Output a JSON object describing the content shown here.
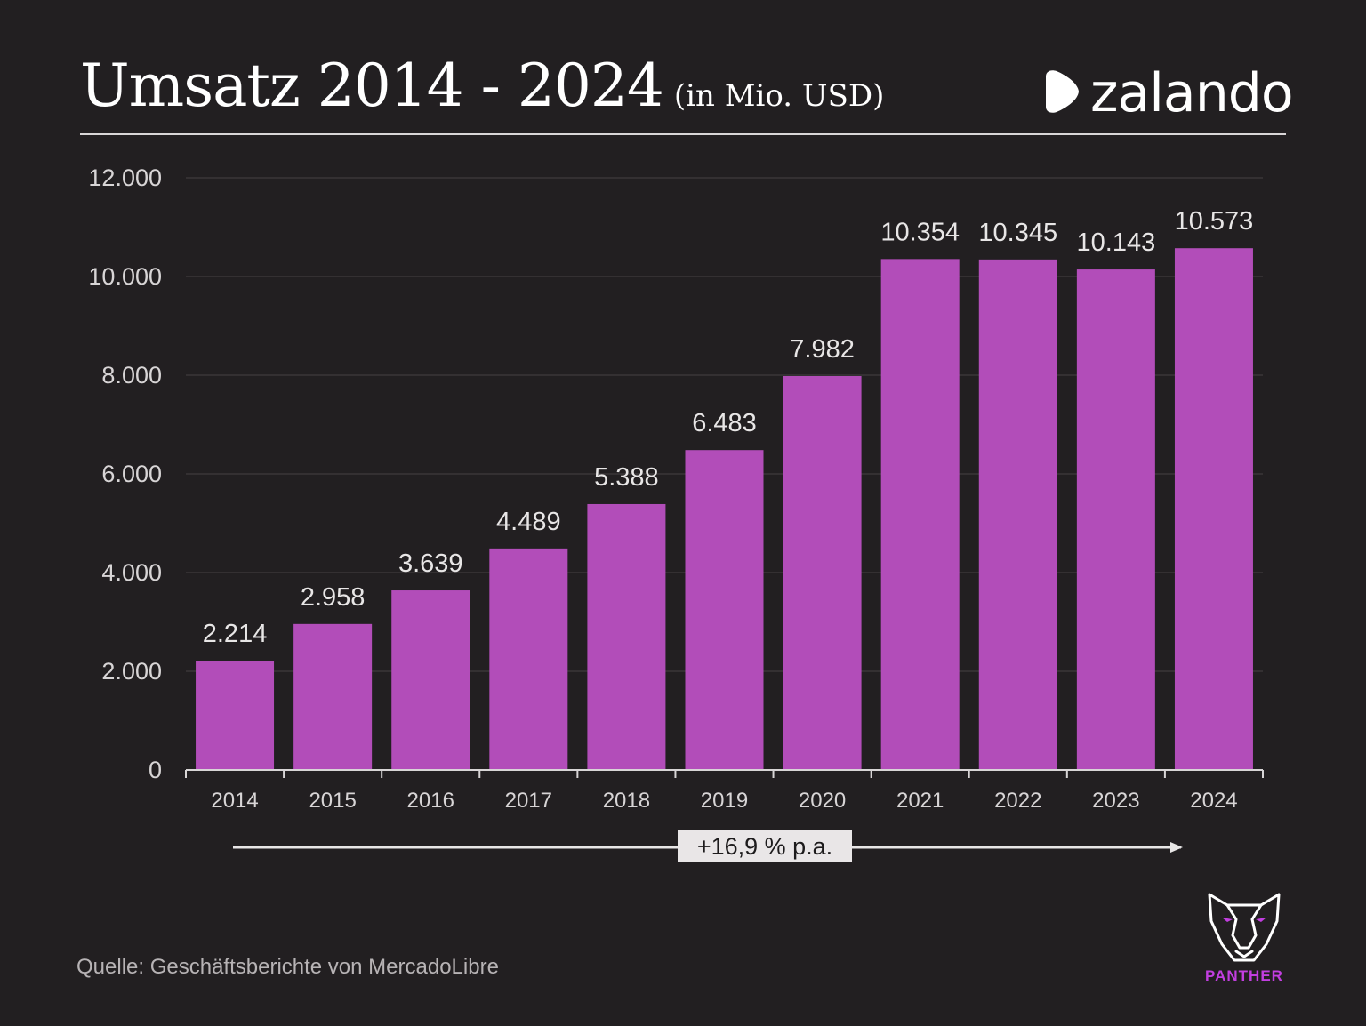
{
  "header": {
    "title": "Umsatz 2014 - 2024",
    "subtitle": "(in Mio. USD)",
    "brand_name": "zalando"
  },
  "chart_data": {
    "type": "bar",
    "categories": [
      "2014",
      "2015",
      "2016",
      "2017",
      "2018",
      "2019",
      "2020",
      "2021",
      "2022",
      "2023",
      "2024"
    ],
    "values": [
      2214,
      2958,
      3639,
      4489,
      5388,
      6483,
      7982,
      10354,
      10345,
      10143,
      10573
    ],
    "value_labels": [
      "2.214",
      "2.958",
      "3.639",
      "4.489",
      "5.388",
      "6.483",
      "7.982",
      "10.354",
      "10.345",
      "10.143",
      "10.573"
    ],
    "ylim": [
      0,
      12000
    ],
    "y_ticks": [
      0,
      2000,
      4000,
      6000,
      8000,
      10000,
      12000
    ],
    "y_tick_labels": [
      "0",
      "2.000",
      "4.000",
      "6.000",
      "8.000",
      "10.000",
      "12.000"
    ],
    "grid": true,
    "bar_color": "#b24db9",
    "annotation": "+16,9 % p.a."
  },
  "footer": {
    "source": "Quelle: Geschäftsberichte von MercadoLibre",
    "logo_text": "PANTHER"
  },
  "colors": {
    "background": "#221f21",
    "bar": "#b24db9",
    "accent": "#c23ee0",
    "text": "#e8e6e6"
  }
}
